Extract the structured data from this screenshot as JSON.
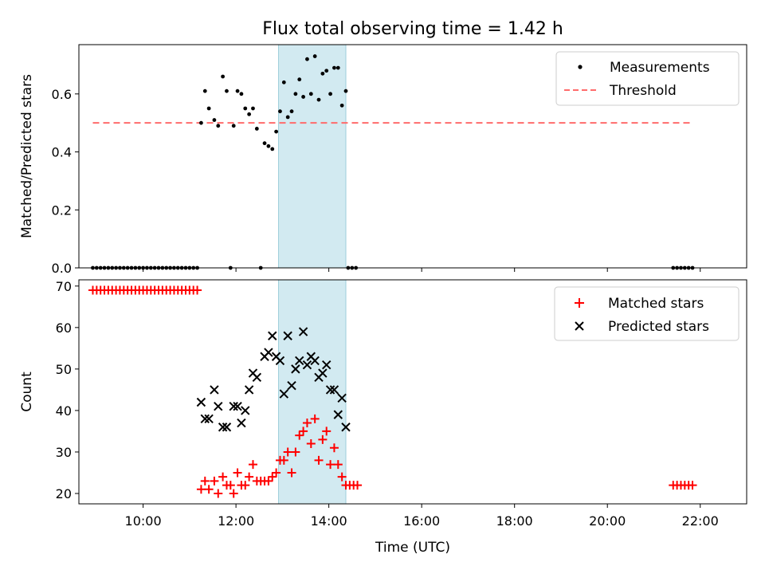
{
  "chart_data": [
    {
      "type": "scatter",
      "title": "Flux total observing time = 1.42 h",
      "xlabel": "",
      "ylabel": "Matched/Predicted stars",
      "xlim": [
        "08:37",
        "23:00"
      ],
      "ylim": [
        0,
        0.77
      ],
      "yticks": [
        "0.0",
        "0.2",
        "0.4",
        "0.6"
      ],
      "shaded_interval": [
        "12:55",
        "14:22"
      ],
      "shade_color": "#add8e6",
      "legend_position": "top-right",
      "legend": [
        "Measurements",
        "Threshold"
      ],
      "threshold": {
        "name": "Threshold",
        "value": 0.5,
        "x_range": [
          "08:55",
          "21:50"
        ],
        "color": "#ff6b6b"
      },
      "series": [
        {
          "name": "Measurements",
          "color": "#000000",
          "points": [
            [
              "08:55",
              0
            ],
            [
              "09:00",
              0
            ],
            [
              "09:05",
              0
            ],
            [
              "09:10",
              0
            ],
            [
              "09:15",
              0
            ],
            [
              "09:20",
              0
            ],
            [
              "09:25",
              0
            ],
            [
              "09:30",
              0
            ],
            [
              "09:35",
              0
            ],
            [
              "09:40",
              0
            ],
            [
              "09:45",
              0
            ],
            [
              "09:50",
              0
            ],
            [
              "09:55",
              0
            ],
            [
              "10:00",
              0
            ],
            [
              "10:05",
              0
            ],
            [
              "10:10",
              0
            ],
            [
              "10:15",
              0
            ],
            [
              "10:20",
              0
            ],
            [
              "10:25",
              0
            ],
            [
              "10:30",
              0
            ],
            [
              "10:35",
              0
            ],
            [
              "10:40",
              0
            ],
            [
              "10:45",
              0
            ],
            [
              "10:50",
              0
            ],
            [
              "10:55",
              0
            ],
            [
              "11:00",
              0
            ],
            [
              "11:05",
              0
            ],
            [
              "11:10",
              0
            ],
            [
              "11:15",
              0.5
            ],
            [
              "11:20",
              0.61
            ],
            [
              "11:25",
              0.55
            ],
            [
              "11:32",
              0.51
            ],
            [
              "11:37",
              0.49
            ],
            [
              "11:43",
              0.66
            ],
            [
              "11:48",
              0.61
            ],
            [
              "11:53",
              0
            ],
            [
              "11:57",
              0.49
            ],
            [
              "12:02",
              0.61
            ],
            [
              "12:07",
              0.6
            ],
            [
              "12:12",
              0.55
            ],
            [
              "12:17",
              0.53
            ],
            [
              "12:22",
              0.55
            ],
            [
              "12:27",
              0.48
            ],
            [
              "12:32",
              0
            ],
            [
              "12:37",
              0.43
            ],
            [
              "12:42",
              0.42
            ],
            [
              "12:47",
              0.41
            ],
            [
              "12:52",
              0.47
            ],
            [
              "12:57",
              0.54
            ],
            [
              "13:02",
              0.64
            ],
            [
              "13:07",
              0.52
            ],
            [
              "13:12",
              0.54
            ],
            [
              "13:17",
              0.6
            ],
            [
              "13:22",
              0.65
            ],
            [
              "13:27",
              0.59
            ],
            [
              "13:32",
              0.72
            ],
            [
              "13:37",
              0.6
            ],
            [
              "13:42",
              0.73
            ],
            [
              "13:47",
              0.58
            ],
            [
              "13:52",
              0.67
            ],
            [
              "13:57",
              0.68
            ],
            [
              "14:02",
              0.6
            ],
            [
              "14:07",
              0.69
            ],
            [
              "14:12",
              0.69
            ],
            [
              "14:17",
              0.56
            ],
            [
              "14:22",
              0.61
            ],
            [
              "14:25",
              0
            ],
            [
              "14:30",
              0
            ],
            [
              "14:35",
              0
            ],
            [
              "21:25",
              0
            ],
            [
              "21:30",
              0
            ],
            [
              "21:35",
              0
            ],
            [
              "21:40",
              0
            ],
            [
              "21:45",
              0
            ],
            [
              "21:50",
              0
            ]
          ]
        }
      ]
    },
    {
      "type": "scatter",
      "title": "",
      "xlabel": "Time (UTC)",
      "ylabel": "Count",
      "xlim": [
        "08:37",
        "23:00"
      ],
      "ylim": [
        17.5,
        71.5
      ],
      "yticks": [
        "20",
        "30",
        "40",
        "50",
        "60",
        "70"
      ],
      "xticks": [
        "10:00",
        "12:00",
        "14:00",
        "16:00",
        "18:00",
        "20:00",
        "22:00"
      ],
      "shaded_interval": [
        "12:55",
        "14:22"
      ],
      "shade_color": "#add8e6",
      "legend_position": "top-right",
      "legend": [
        "Matched stars",
        "Predicted stars"
      ],
      "series": [
        {
          "name": "Matched stars",
          "marker": "+",
          "color": "#ff0000",
          "points": [
            [
              "08:55",
              69
            ],
            [
              "09:00",
              69
            ],
            [
              "09:05",
              69
            ],
            [
              "09:10",
              69
            ],
            [
              "09:15",
              69
            ],
            [
              "09:20",
              69
            ],
            [
              "09:25",
              69
            ],
            [
              "09:30",
              69
            ],
            [
              "09:35",
              69
            ],
            [
              "09:40",
              69
            ],
            [
              "09:45",
              69
            ],
            [
              "09:50",
              69
            ],
            [
              "09:55",
              69
            ],
            [
              "10:00",
              69
            ],
            [
              "10:05",
              69
            ],
            [
              "10:10",
              69
            ],
            [
              "10:15",
              69
            ],
            [
              "10:20",
              69
            ],
            [
              "10:25",
              69
            ],
            [
              "10:30",
              69
            ],
            [
              "10:35",
              69
            ],
            [
              "10:40",
              69
            ],
            [
              "10:45",
              69
            ],
            [
              "10:50",
              69
            ],
            [
              "10:55",
              69
            ],
            [
              "11:00",
              69
            ],
            [
              "11:05",
              69
            ],
            [
              "11:10",
              69
            ],
            [
              "11:15",
              21
            ],
            [
              "11:20",
              23
            ],
            [
              "11:25",
              21
            ],
            [
              "11:32",
              23
            ],
            [
              "11:37",
              20
            ],
            [
              "11:43",
              24
            ],
            [
              "11:48",
              22
            ],
            [
              "11:53",
              22
            ],
            [
              "11:57",
              20
            ],
            [
              "12:02",
              25
            ],
            [
              "12:07",
              22
            ],
            [
              "12:12",
              22
            ],
            [
              "12:17",
              24
            ],
            [
              "12:22",
              27
            ],
            [
              "12:27",
              23
            ],
            [
              "12:32",
              23
            ],
            [
              "12:37",
              23
            ],
            [
              "12:42",
              23
            ],
            [
              "12:47",
              24
            ],
            [
              "12:52",
              25
            ],
            [
              "12:57",
              28
            ],
            [
              "13:02",
              28
            ],
            [
              "13:07",
              30
            ],
            [
              "13:12",
              25
            ],
            [
              "13:17",
              30
            ],
            [
              "13:22",
              34
            ],
            [
              "13:27",
              35
            ],
            [
              "13:32",
              37
            ],
            [
              "13:37",
              32
            ],
            [
              "13:42",
              38
            ],
            [
              "13:47",
              28
            ],
            [
              "13:52",
              33
            ],
            [
              "13:57",
              35
            ],
            [
              "14:02",
              27
            ],
            [
              "14:07",
              31
            ],
            [
              "14:12",
              27
            ],
            [
              "14:17",
              24
            ],
            [
              "14:22",
              22
            ],
            [
              "14:27",
              22
            ],
            [
              "14:32",
              22
            ],
            [
              "14:37",
              22
            ],
            [
              "21:25",
              22
            ],
            [
              "21:30",
              22
            ],
            [
              "21:35",
              22
            ],
            [
              "21:40",
              22
            ],
            [
              "21:45",
              22
            ],
            [
              "21:50",
              22
            ]
          ]
        },
        {
          "name": "Predicted stars",
          "marker": "x",
          "color": "#000000",
          "points": [
            [
              "11:15",
              42
            ],
            [
              "11:20",
              38
            ],
            [
              "11:25",
              38
            ],
            [
              "11:32",
              45
            ],
            [
              "11:37",
              41
            ],
            [
              "11:43",
              36
            ],
            [
              "11:48",
              36
            ],
            [
              "11:57",
              41
            ],
            [
              "12:02",
              41
            ],
            [
              "12:07",
              37
            ],
            [
              "12:12",
              40
            ],
            [
              "12:17",
              45
            ],
            [
              "12:22",
              49
            ],
            [
              "12:27",
              48
            ],
            [
              "12:37",
              53
            ],
            [
              "12:42",
              54
            ],
            [
              "12:47",
              58
            ],
            [
              "12:52",
              53
            ],
            [
              "12:57",
              52
            ],
            [
              "13:02",
              44
            ],
            [
              "13:07",
              58
            ],
            [
              "13:12",
              46
            ],
            [
              "13:17",
              50
            ],
            [
              "13:22",
              52
            ],
            [
              "13:27",
              59
            ],
            [
              "13:32",
              51
            ],
            [
              "13:37",
              53
            ],
            [
              "13:42",
              52
            ],
            [
              "13:47",
              48
            ],
            [
              "13:52",
              49
            ],
            [
              "13:57",
              51
            ],
            [
              "14:02",
              45
            ],
            [
              "14:07",
              45
            ],
            [
              "14:12",
              39
            ],
            [
              "14:17",
              43
            ],
            [
              "14:22",
              36
            ]
          ]
        }
      ]
    }
  ]
}
